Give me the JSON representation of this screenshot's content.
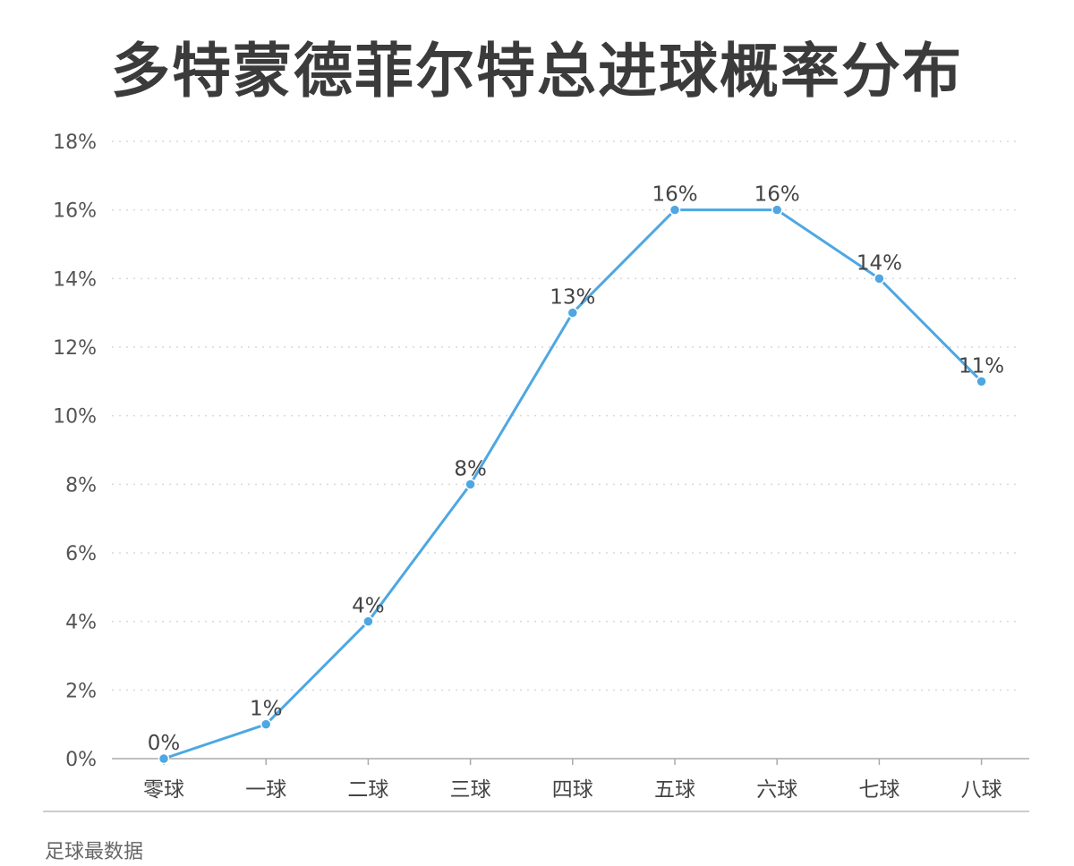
{
  "chart_data": {
    "type": "line",
    "title": "多特蒙德菲尔特总进球概率分布",
    "categories": [
      "零球",
      "一球",
      "二球",
      "三球",
      "四球",
      "五球",
      "六球",
      "七球",
      "八球"
    ],
    "series": [
      {
        "values": [
          0,
          1,
          4,
          8,
          13,
          16,
          16,
          14,
          11
        ]
      }
    ],
    "data_labels": [
      "0%",
      "1%",
      "4%",
      "8%",
      "13%",
      "16%",
      "16%",
      "14%",
      "11%"
    ],
    "y_ticks": [
      0,
      2,
      4,
      6,
      8,
      10,
      12,
      14,
      16,
      18
    ],
    "y_tick_labels": [
      "0%",
      "2%",
      "4%",
      "6%",
      "8%",
      "10%",
      "12%",
      "14%",
      "16%",
      "18%"
    ],
    "ylim": [
      0,
      18
    ],
    "xlabel": "",
    "ylabel": "",
    "grid": "horizontal dotted",
    "line_color": "#4ea7e2",
    "grid_color": "#d9d9d9",
    "axis_color": "#aaaaaa",
    "text_color": "#444444"
  },
  "footer": {
    "source": "足球最数据"
  }
}
